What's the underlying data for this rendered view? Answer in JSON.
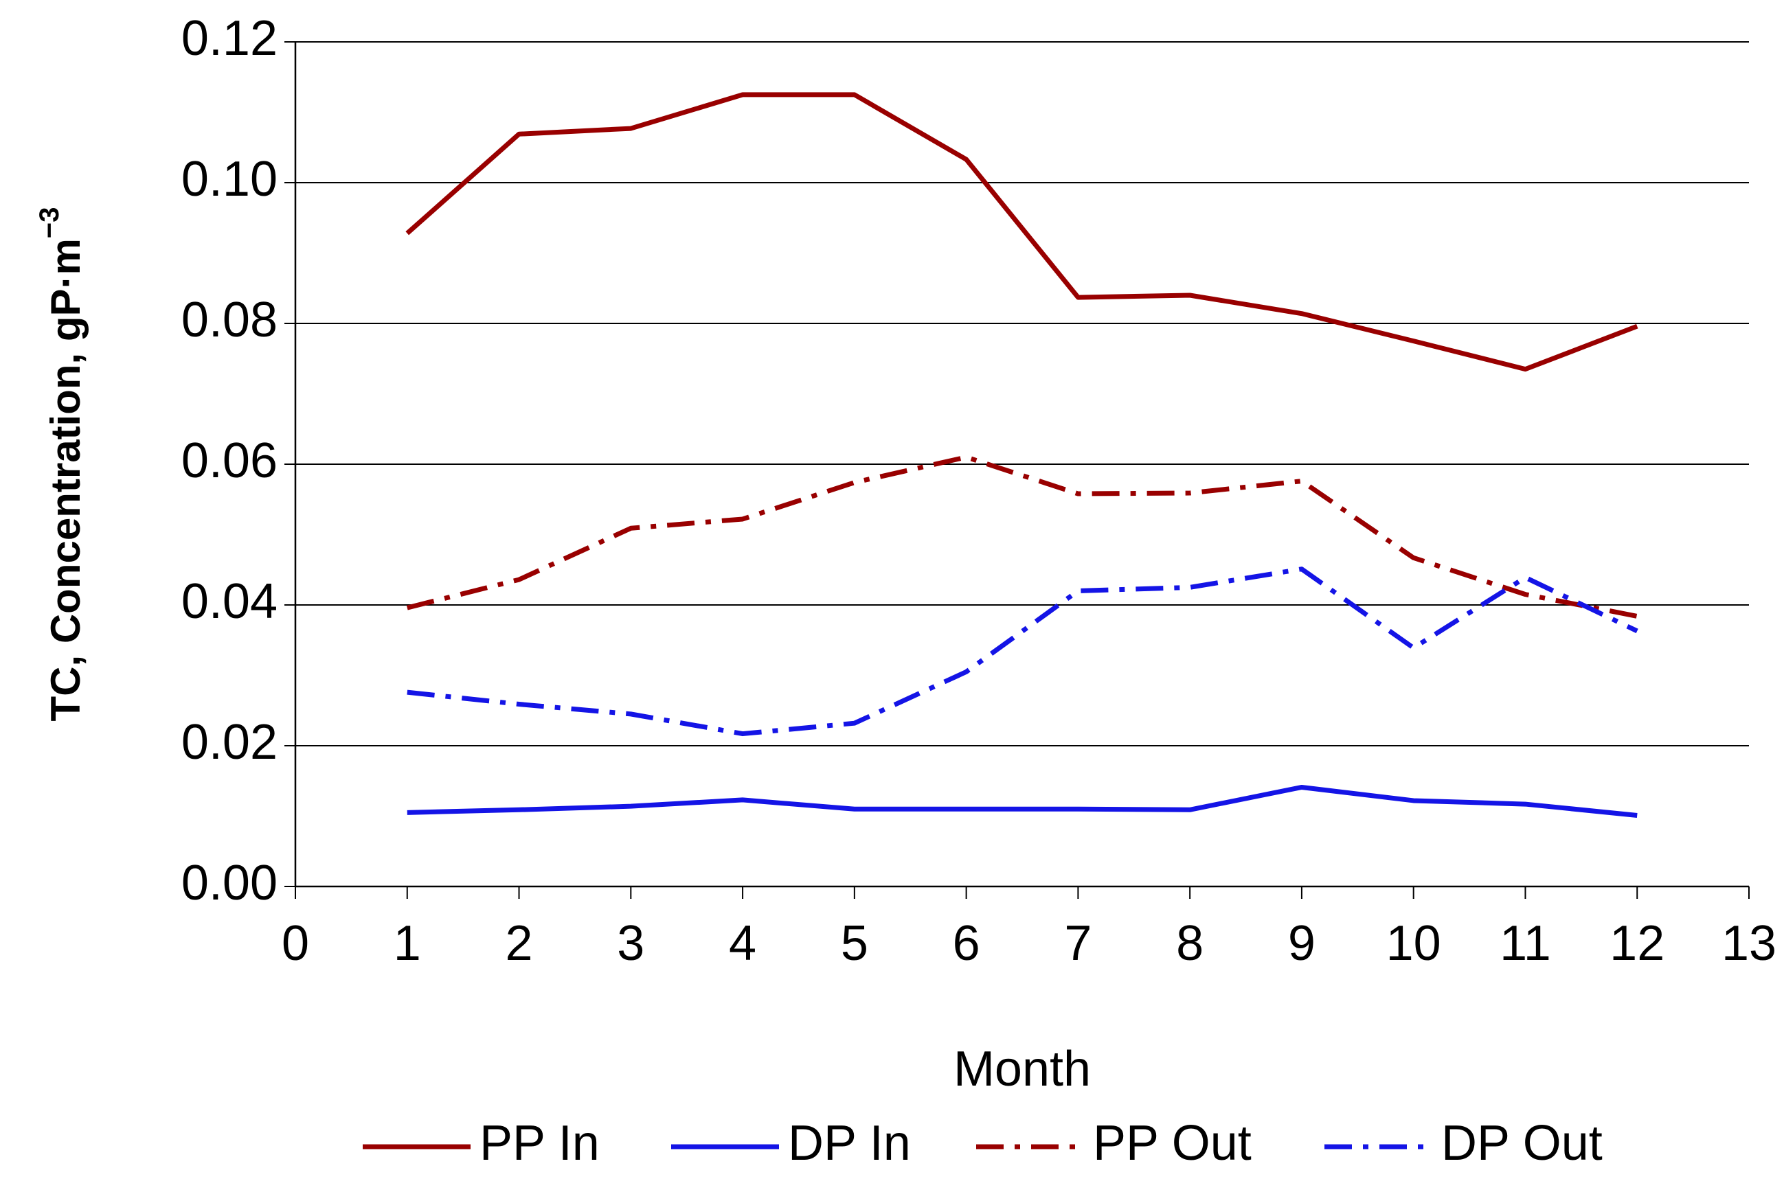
{
  "chart_data": {
    "type": "line",
    "ylabel": "TC, Concentration, gP·m",
    "ylabel_superscript": "−3",
    "xlabel": "Month",
    "x": [
      1,
      2,
      3,
      4,
      5,
      6,
      7,
      8,
      9,
      10,
      11,
      12
    ],
    "series": [
      {
        "name": "PP In",
        "color": "#990000",
        "dash": "solid",
        "values": [
          0.0928,
          0.1069,
          0.1077,
          0.1125,
          0.1125,
          0.1033,
          0.0837,
          0.084,
          0.0814,
          0.0775,
          0.0735,
          0.0796
        ]
      },
      {
        "name": "DP In",
        "color": "#1414e6",
        "dash": "solid",
        "values": [
          0.0105,
          0.0109,
          0.0114,
          0.0123,
          0.011,
          0.011,
          0.011,
          0.0109,
          0.0141,
          0.0122,
          0.0117,
          0.0101
        ]
      },
      {
        "name": "PP Out",
        "color": "#990000",
        "dash": "dash-dot",
        "values": [
          0.0396,
          0.0436,
          0.0509,
          0.0522,
          0.0574,
          0.061,
          0.0558,
          0.0559,
          0.0576,
          0.0467,
          0.0415,
          0.0384
        ]
      },
      {
        "name": "DP Out",
        "color": "#1414e6",
        "dash": "dash-dot",
        "values": [
          0.0276,
          0.0259,
          0.0245,
          0.0217,
          0.0232,
          0.0305,
          0.042,
          0.0425,
          0.0451,
          0.0339,
          0.0439,
          0.0363
        ]
      }
    ],
    "xlim": [
      0,
      13
    ],
    "xticks": [
      0,
      1,
      2,
      3,
      4,
      5,
      6,
      7,
      8,
      9,
      10,
      11,
      12,
      13
    ],
    "ylim": [
      0,
      0.12
    ],
    "yticks": [
      {
        "value": 0,
        "label": "0.00"
      },
      {
        "value": 0.02,
        "label": "0.02"
      },
      {
        "value": 0.04,
        "label": "0.04"
      },
      {
        "value": 0.06,
        "label": "0.06"
      },
      {
        "value": 0.08,
        "label": "0.08"
      },
      {
        "value": 0.1,
        "label": "0.10"
      },
      {
        "value": 0.12,
        "label": "0.12"
      }
    ],
    "grid": true,
    "legend": "bottom"
  }
}
